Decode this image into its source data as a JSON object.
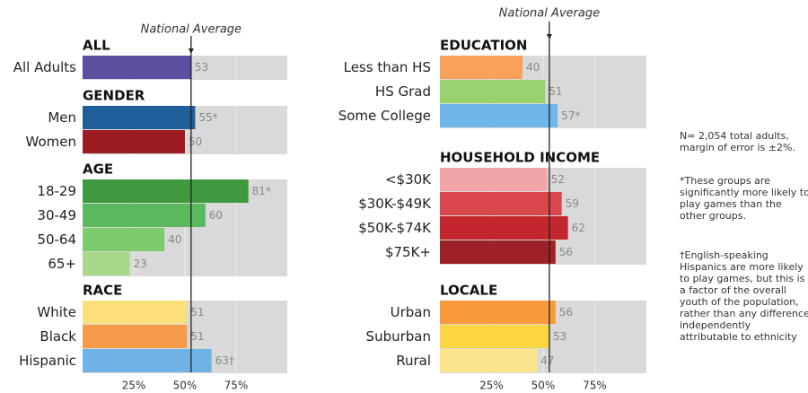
{
  "chart_data": [
    {
      "type": "bar",
      "reference": {
        "label": "National Average",
        "value": 53
      },
      "xlim": [
        0,
        100
      ],
      "xticks": [
        {
          "value": 25,
          "label": "25%"
        },
        {
          "value": 50,
          "label": "50%"
        },
        {
          "value": 75,
          "label": "75%"
        }
      ],
      "groups": [
        {
          "title": "ALL",
          "categories": [
            "All Adults"
          ],
          "values": [
            53
          ],
          "colors": [
            "#5b4fa0"
          ]
        },
        {
          "title": "GENDER",
          "categories": [
            "Men",
            "Women"
          ],
          "values": [
            55,
            50
          ],
          "value_labels": [
            "55*",
            "50"
          ],
          "colors": [
            "#1f5f99",
            "#9c1b21"
          ]
        },
        {
          "title": "AGE",
          "categories": [
            "18-29",
            "30-49",
            "50-64",
            "65+"
          ],
          "values": [
            81,
            60,
            40,
            23
          ],
          "value_labels": [
            "81*",
            "60",
            "40",
            "23"
          ],
          "colors": [
            "#3f9a3f",
            "#5cb85c",
            "#7ccc6e",
            "#a8d98a"
          ]
        },
        {
          "title": "RACE",
          "categories": [
            "White",
            "Black",
            "Hispanic"
          ],
          "values": [
            51,
            51,
            63
          ],
          "value_labels": [
            "51",
            "51",
            "63†"
          ],
          "colors": [
            "#fbe07a",
            "#f79a4a",
            "#6fb3e6"
          ]
        }
      ]
    },
    {
      "type": "bar",
      "reference": {
        "label": "National Average",
        "value": 53
      },
      "xlim": [
        0,
        100
      ],
      "xticks": [
        {
          "value": 25,
          "label": "25%"
        },
        {
          "value": 50,
          "label": "50%"
        },
        {
          "value": 75,
          "label": "75%"
        }
      ],
      "groups": [
        {
          "title": "EDUCATION",
          "categories": [
            "Less than HS",
            "HS Grad",
            "Some College"
          ],
          "values": [
            40,
            51,
            57
          ],
          "value_labels": [
            "40",
            "51",
            "57*"
          ],
          "colors": [
            "#f9a15a",
            "#98d46e",
            "#6fb7ea"
          ]
        },
        {
          "title": "HOUSEHOLD INCOME",
          "categories": [
            "<$30K",
            "$30K-$49K",
            "$50K-$74K",
            "$75K+"
          ],
          "values": [
            52,
            59,
            62,
            56
          ],
          "colors": [
            "#f2a5a8",
            "#d9474d",
            "#c4262e",
            "#9e2127"
          ]
        },
        {
          "title": "LOCALE",
          "categories": [
            "Urban",
            "Suburban",
            "Rural"
          ],
          "values": [
            56,
            53,
            47
          ],
          "colors": [
            "#f79a3a",
            "#fdd641",
            "#fbe48c"
          ]
        }
      ]
    }
  ],
  "notes": [
    "N= 2,054 total adults, margin of error is ±2%.",
    "*These groups are significantly more likely to play games than the other groups.",
    "†English-speaking Hispanics are more likely to play games, but this is a factor of the overall youth of the population, rather than any difference independently attributable to ethnicity"
  ]
}
